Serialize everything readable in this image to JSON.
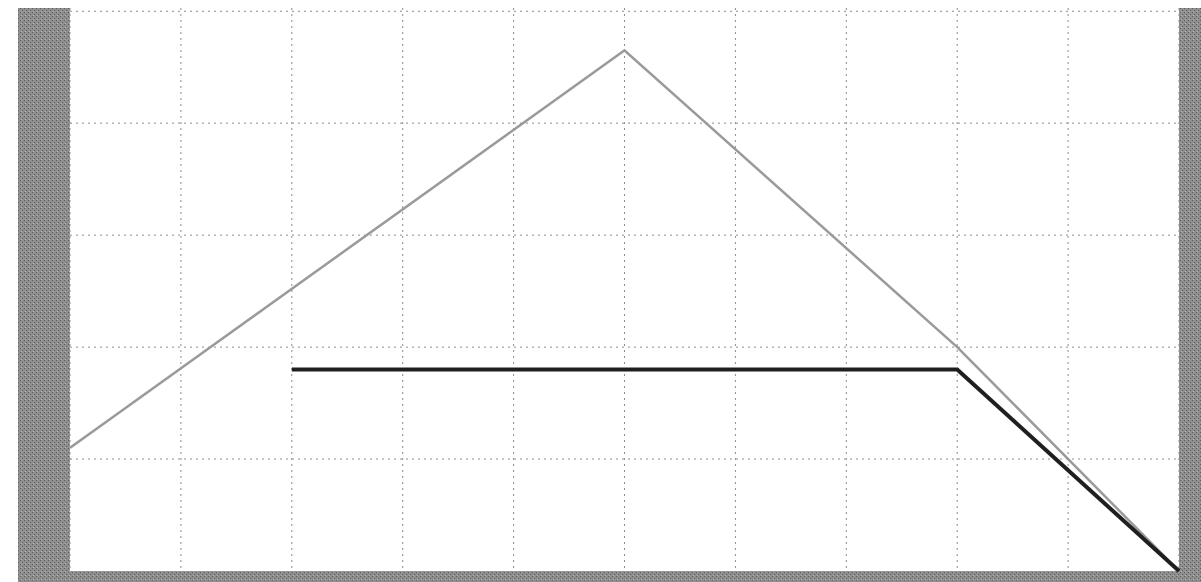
{
  "colors": {
    "background": "#ffffff",
    "frame": "#8a8a8a",
    "grid": "#8c8c8c",
    "upper_curve": "#9a9a9a",
    "lower_curve": "#1f1f1f"
  },
  "chart_data": {
    "type": "line",
    "title": "",
    "xlabel": "",
    "ylabel": "",
    "grid": true,
    "legend": "none",
    "xlim": [
      0,
      10
    ],
    "ylim": [
      0,
      5.1
    ],
    "xticks": [
      0,
      1,
      2,
      3,
      4,
      5,
      6,
      7,
      8,
      9,
      10
    ],
    "yticks": [
      1,
      2,
      3,
      4,
      5
    ],
    "series": [
      {
        "x": [
          0,
          5,
          8,
          10
        ],
        "y": [
          1.1,
          4.65,
          2.0,
          0.0
        ],
        "style": "upper"
      },
      {
        "x": [
          2,
          8,
          10
        ],
        "y": [
          1.8,
          1.8,
          0.0
        ],
        "style": "lower"
      }
    ]
  }
}
